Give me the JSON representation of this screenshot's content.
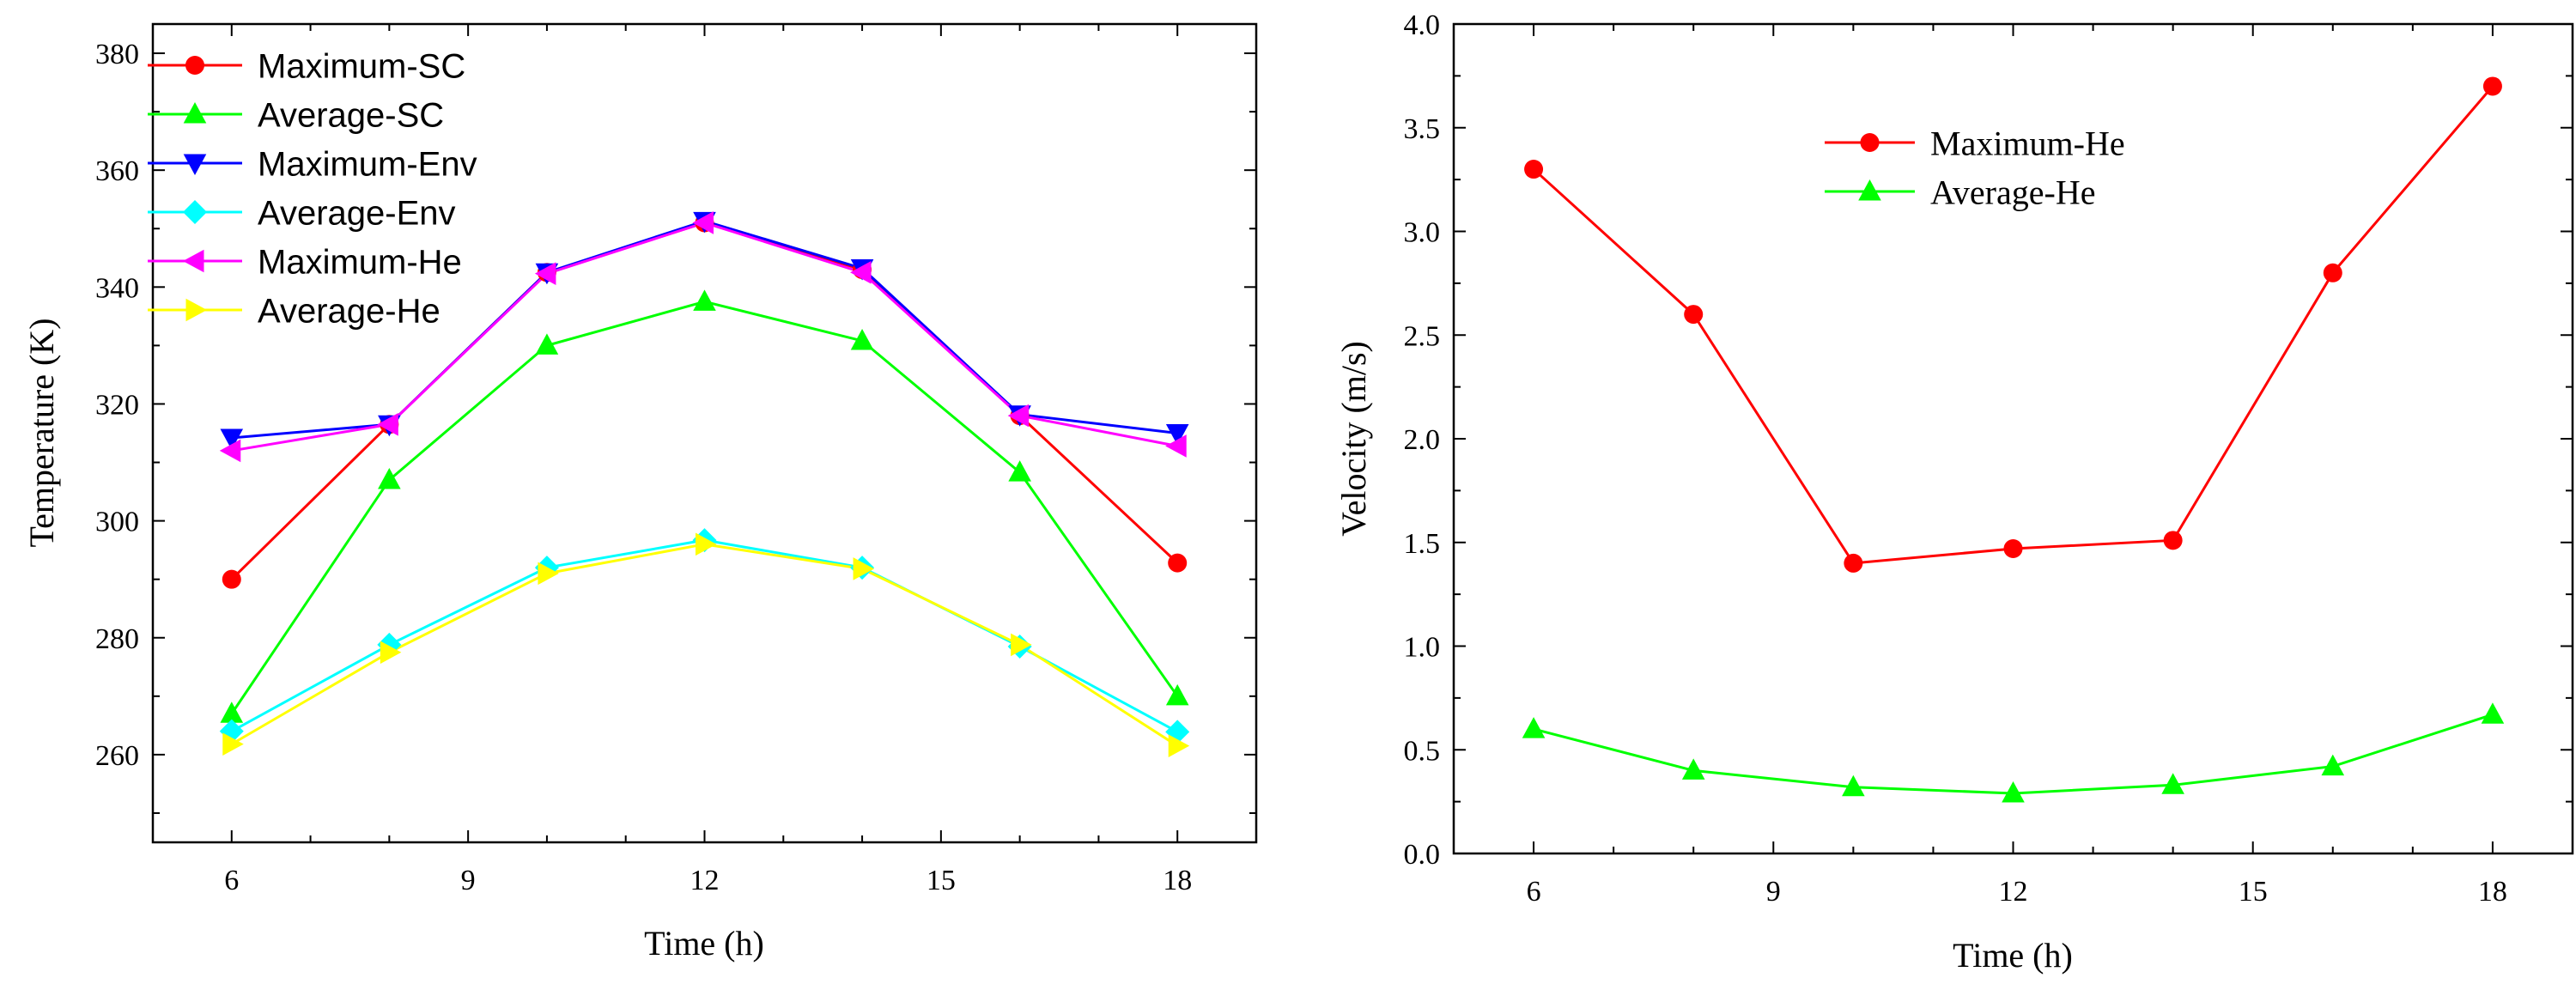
{
  "chart_data": [
    {
      "type": "line",
      "title": "",
      "xlabel": "Time (h)",
      "ylabel": "Temperature (K)",
      "xlim": [
        5,
        19
      ],
      "ylim": [
        245,
        385
      ],
      "xticks": [
        6,
        9,
        12,
        15,
        18
      ],
      "yticks": [
        260,
        280,
        300,
        320,
        340,
        360,
        380
      ],
      "legend_position": "top-left",
      "x": [
        6,
        8,
        10,
        12,
        14,
        16,
        18
      ],
      "series": [
        {
          "name": "Maximum-SC",
          "color": "#ff0000",
          "marker": "circle",
          "values": [
            290.0,
            316.5,
            342.5,
            351.0,
            343.0,
            318.0,
            292.8
          ]
        },
        {
          "name": "Average-SC",
          "color": "#00ff00",
          "marker": "triangle-up",
          "values": [
            267.0,
            307.0,
            330.0,
            337.5,
            330.8,
            308.3,
            270.0
          ]
        },
        {
          "name": "Maximum-Env",
          "color": "#0000ff",
          "marker": "triangle-down",
          "values": [
            314.2,
            316.5,
            342.5,
            351.3,
            343.2,
            318.2,
            315.0
          ]
        },
        {
          "name": "Average-Env",
          "color": "#00ffff",
          "marker": "diamond",
          "values": [
            264.0,
            278.8,
            292.0,
            296.7,
            292.0,
            278.5,
            263.9
          ]
        },
        {
          "name": "Maximum-He",
          "color": "#ff00ff",
          "marker": "triangle-left",
          "values": [
            312.0,
            316.5,
            342.3,
            351.0,
            342.5,
            318.0,
            312.8
          ]
        },
        {
          "name": "Average-He",
          "color": "#ffff00",
          "marker": "triangle-right",
          "values": [
            261.8,
            277.5,
            291.0,
            296.0,
            291.8,
            278.8,
            261.5
          ]
        }
      ]
    },
    {
      "type": "line",
      "title": "",
      "xlabel": "Time (h)",
      "ylabel": "Velocity (m/s)",
      "xlim": [
        5,
        19
      ],
      "ylim": [
        0.0,
        4.0
      ],
      "xticks": [
        6,
        9,
        12,
        15,
        18
      ],
      "yticks": [
        0.0,
        0.5,
        1.0,
        1.5,
        2.0,
        2.5,
        3.0,
        3.5,
        4.0
      ],
      "ytick_labels": [
        "0.0",
        "0.5",
        "1.0",
        "1.5",
        "2.0",
        "2.5",
        "3.0",
        "3.5",
        "4.0"
      ],
      "legend_position": "top-center",
      "x": [
        6,
        8,
        10,
        12,
        14,
        16,
        18
      ],
      "series": [
        {
          "name": "Maximum-He",
          "color": "#ff0000",
          "marker": "circle",
          "values": [
            3.3,
            2.6,
            1.4,
            1.47,
            1.51,
            2.8,
            3.7
          ]
        },
        {
          "name": "Average-He",
          "color": "#00ff00",
          "marker": "triangle-up",
          "values": [
            0.6,
            0.4,
            0.32,
            0.29,
            0.33,
            0.42,
            0.67
          ]
        }
      ]
    }
  ]
}
